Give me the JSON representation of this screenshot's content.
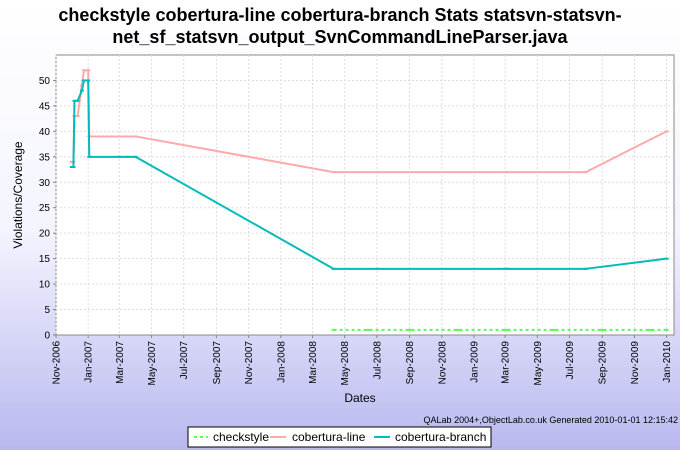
{
  "chart_data": {
    "type": "line",
    "title_lines": [
      "checkstyle cobertura-line cobertura-branch  Stats statsvn-statsvn-",
      "net_sf_statsvn_output_SvnCommandLineParser.java"
    ],
    "xlabel": "Dates",
    "ylabel": "Violations/Coverage",
    "credit": "QALab 2004+,ObjectLab.co.uk Generated 2010-01-01 12:15:42",
    "xlim": [
      "2006-11-01",
      "2010-01-15"
    ],
    "ylim": [
      0,
      55
    ],
    "yticks": [
      0,
      5,
      10,
      15,
      20,
      25,
      30,
      35,
      40,
      45,
      50
    ],
    "xticks": [
      {
        "date": "2006-11-01",
        "label": "Nov-2006"
      },
      {
        "date": "2007-01-01",
        "label": "Jan-2007"
      },
      {
        "date": "2007-03-01",
        "label": "Mar-2007"
      },
      {
        "date": "2007-05-01",
        "label": "May-2007"
      },
      {
        "date": "2007-07-01",
        "label": "Jul-2007"
      },
      {
        "date": "2007-09-01",
        "label": "Sep-2007"
      },
      {
        "date": "2007-11-01",
        "label": "Nov-2007"
      },
      {
        "date": "2008-01-01",
        "label": "Jan-2008"
      },
      {
        "date": "2008-03-01",
        "label": "Mar-2008"
      },
      {
        "date": "2008-05-01",
        "label": "May-2008"
      },
      {
        "date": "2008-07-01",
        "label": "Jul-2008"
      },
      {
        "date": "2008-09-01",
        "label": "Sep-2008"
      },
      {
        "date": "2008-11-01",
        "label": "Nov-2008"
      },
      {
        "date": "2009-01-01",
        "label": "Jan-2009"
      },
      {
        "date": "2009-03-01",
        "label": "Mar-2009"
      },
      {
        "date": "2009-05-01",
        "label": "May-2009"
      },
      {
        "date": "2009-07-01",
        "label": "Jul-2009"
      },
      {
        "date": "2009-09-01",
        "label": "Sep-2009"
      },
      {
        "date": "2009-11-01",
        "label": "Nov-2009"
      },
      {
        "date": "2010-01-01",
        "label": "Jan-2010"
      }
    ],
    "grid": true,
    "legend_position": "bottom",
    "series": [
      {
        "name": "checkstyle",
        "color": "#55ff55",
        "dash": true,
        "points": [
          [
            "2008-04-10",
            1
          ],
          [
            "2008-06-15",
            1
          ],
          [
            "2008-09-01",
            1
          ],
          [
            "2008-12-01",
            1
          ],
          [
            "2009-03-01",
            1
          ],
          [
            "2009-03-05",
            1
          ],
          [
            "2009-06-01",
            1
          ],
          [
            "2009-09-01",
            1
          ],
          [
            "2009-12-01",
            1
          ],
          [
            "2010-01-01",
            1
          ]
        ]
      },
      {
        "name": "cobertura-line",
        "color": "#ffaaaa",
        "dash": false,
        "points": [
          [
            "2006-12-01",
            34
          ],
          [
            "2006-12-04",
            34
          ],
          [
            "2006-12-06",
            43
          ],
          [
            "2006-12-12",
            43
          ],
          [
            "2006-12-20",
            49
          ],
          [
            "2006-12-24",
            52
          ],
          [
            "2007-01-01",
            52
          ],
          [
            "2007-01-03",
            39
          ],
          [
            "2007-03-01",
            39
          ],
          [
            "2007-03-15",
            39
          ],
          [
            "2007-04-01",
            39
          ],
          [
            "2008-04-10",
            32
          ],
          [
            "2008-07-01",
            32
          ],
          [
            "2009-03-01",
            32
          ],
          [
            "2009-03-05",
            32
          ],
          [
            "2009-08-01",
            32
          ],
          [
            "2010-01-01",
            40
          ]
        ]
      },
      {
        "name": "cobertura-branch",
        "color": "#00bbbb",
        "dash": false,
        "points": [
          [
            "2006-12-01",
            33
          ],
          [
            "2006-12-04",
            33
          ],
          [
            "2006-12-06",
            46
          ],
          [
            "2006-12-12",
            46
          ],
          [
            "2006-12-20",
            48
          ],
          [
            "2006-12-24",
            50
          ],
          [
            "2007-01-01",
            50
          ],
          [
            "2007-01-03",
            35
          ],
          [
            "2007-03-01",
            35
          ],
          [
            "2007-03-15",
            35
          ],
          [
            "2007-04-01",
            35
          ],
          [
            "2008-04-10",
            13
          ],
          [
            "2008-07-01",
            13
          ],
          [
            "2009-03-01",
            13
          ],
          [
            "2009-03-05",
            13
          ],
          [
            "2009-08-01",
            13
          ],
          [
            "2010-01-01",
            15
          ]
        ]
      }
    ]
  }
}
